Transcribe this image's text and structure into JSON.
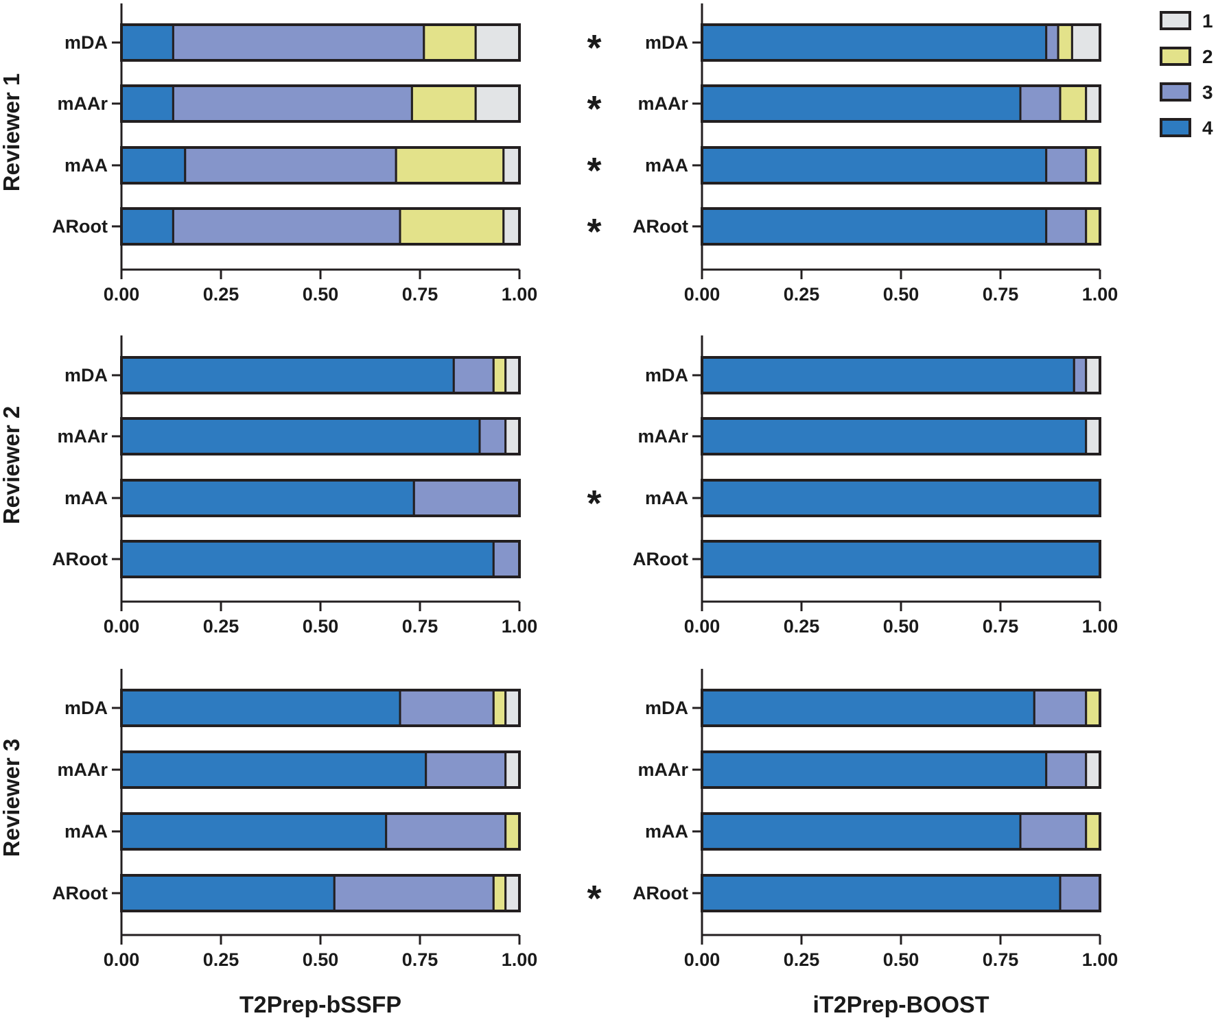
{
  "column_titles": [
    "T2Prep-bSSFP",
    "iT2Prep-BOOST"
  ],
  "row_titles": [
    "Reviewer 1",
    "Reviewer 2",
    "Reviewer 3"
  ],
  "legend": {
    "entries": [
      {
        "label": "1",
        "color": "#e2e4e6"
      },
      {
        "label": "2",
        "color": "#e3e28a"
      },
      {
        "label": "3",
        "color": "#8595ca"
      },
      {
        "label": "4",
        "color": "#2e7bc0"
      }
    ]
  },
  "significance_marker": "*",
  "chart_data": [
    {
      "type": "bar",
      "orientation": "horizontal",
      "stacked": true,
      "reviewer": "Reviewer 1",
      "method": "T2Prep-bSSFP",
      "categories": [
        "mDA",
        "mAAr",
        "mAA",
        "ARoot"
      ],
      "series": [
        {
          "name": "4",
          "values": [
            0.13,
            0.13,
            0.16,
            0.13
          ]
        },
        {
          "name": "3",
          "values": [
            0.63,
            0.6,
            0.53,
            0.57
          ]
        },
        {
          "name": "2",
          "values": [
            0.13,
            0.16,
            0.27,
            0.26
          ]
        },
        {
          "name": "1",
          "values": [
            0.11,
            0.11,
            0.04,
            0.04
          ]
        }
      ],
      "significant": [
        false,
        false,
        false,
        false
      ],
      "xlim": [
        0,
        1
      ],
      "xticks": [
        "0.00",
        "0.25",
        "0.50",
        "0.75",
        "1.00"
      ]
    },
    {
      "type": "bar",
      "orientation": "horizontal",
      "stacked": true,
      "reviewer": "Reviewer 1",
      "method": "iT2Prep-BOOST",
      "categories": [
        "mDA",
        "mAAr",
        "mAA",
        "ARoot"
      ],
      "series": [
        {
          "name": "4",
          "values": [
            0.865,
            0.8,
            0.865,
            0.865
          ]
        },
        {
          "name": "3",
          "values": [
            0.03,
            0.1,
            0.1,
            0.1
          ]
        },
        {
          "name": "2",
          "values": [
            0.035,
            0.065,
            0.035,
            0.035
          ]
        },
        {
          "name": "1",
          "values": [
            0.07,
            0.035,
            0,
            0
          ]
        }
      ],
      "significant": [
        true,
        true,
        true,
        true
      ],
      "xlim": [
        0,
        1
      ],
      "xticks": [
        "0.00",
        "0.25",
        "0.50",
        "0.75",
        "1.00"
      ]
    },
    {
      "type": "bar",
      "orientation": "horizontal",
      "stacked": true,
      "reviewer": "Reviewer 2",
      "method": "T2Prep-bSSFP",
      "categories": [
        "mDA",
        "mAAr",
        "mAA",
        "ARoot"
      ],
      "series": [
        {
          "name": "4",
          "values": [
            0.835,
            0.9,
            0.735,
            0.935
          ]
        },
        {
          "name": "3",
          "values": [
            0.1,
            0.065,
            0.265,
            0.065
          ]
        },
        {
          "name": "2",
          "values": [
            0.03,
            0,
            0,
            0
          ]
        },
        {
          "name": "1",
          "values": [
            0.035,
            0.035,
            0,
            0
          ]
        }
      ],
      "significant": [
        false,
        false,
        false,
        false
      ],
      "xlim": [
        0,
        1
      ],
      "xticks": [
        "0.00",
        "0.25",
        "0.50",
        "0.75",
        "1.00"
      ]
    },
    {
      "type": "bar",
      "orientation": "horizontal",
      "stacked": true,
      "reviewer": "Reviewer 2",
      "method": "iT2Prep-BOOST",
      "categories": [
        "mDA",
        "mAAr",
        "mAA",
        "ARoot"
      ],
      "series": [
        {
          "name": "4",
          "values": [
            0.935,
            0.965,
            1.0,
            1.0
          ]
        },
        {
          "name": "3",
          "values": [
            0.03,
            0,
            0,
            0
          ]
        },
        {
          "name": "2",
          "values": [
            0,
            0,
            0,
            0
          ]
        },
        {
          "name": "1",
          "values": [
            0.035,
            0.035,
            0,
            0
          ]
        }
      ],
      "significant": [
        false,
        false,
        true,
        false
      ],
      "xlim": [
        0,
        1
      ],
      "xticks": [
        "0.00",
        "0.25",
        "0.50",
        "0.75",
        "1.00"
      ]
    },
    {
      "type": "bar",
      "orientation": "horizontal",
      "stacked": true,
      "reviewer": "Reviewer 3",
      "method": "T2Prep-bSSFP",
      "categories": [
        "mDA",
        "mAAr",
        "mAA",
        "ARoot"
      ],
      "series": [
        {
          "name": "4",
          "values": [
            0.7,
            0.765,
            0.665,
            0.535
          ]
        },
        {
          "name": "3",
          "values": [
            0.235,
            0.2,
            0.3,
            0.4
          ]
        },
        {
          "name": "2",
          "values": [
            0.03,
            0,
            0.035,
            0.03
          ]
        },
        {
          "name": "1",
          "values": [
            0.035,
            0.035,
            0,
            0.035
          ]
        }
      ],
      "significant": [
        false,
        false,
        false,
        false
      ],
      "xlim": [
        0,
        1
      ],
      "xticks": [
        "0.00",
        "0.25",
        "0.50",
        "0.75",
        "1.00"
      ]
    },
    {
      "type": "bar",
      "orientation": "horizontal",
      "stacked": true,
      "reviewer": "Reviewer 3",
      "method": "iT2Prep-BOOST",
      "categories": [
        "mDA",
        "mAAr",
        "mAA",
        "ARoot"
      ],
      "series": [
        {
          "name": "4",
          "values": [
            0.835,
            0.865,
            0.8,
            0.9
          ]
        },
        {
          "name": "3",
          "values": [
            0.13,
            0.1,
            0.165,
            0.1
          ]
        },
        {
          "name": "2",
          "values": [
            0.035,
            0,
            0.035,
            0
          ]
        },
        {
          "name": "1",
          "values": [
            0,
            0.035,
            0,
            0
          ]
        }
      ],
      "significant": [
        false,
        false,
        false,
        true
      ],
      "xlim": [
        0,
        1
      ],
      "xticks": [
        "0.00",
        "0.25",
        "0.50",
        "0.75",
        "1.00"
      ]
    }
  ]
}
